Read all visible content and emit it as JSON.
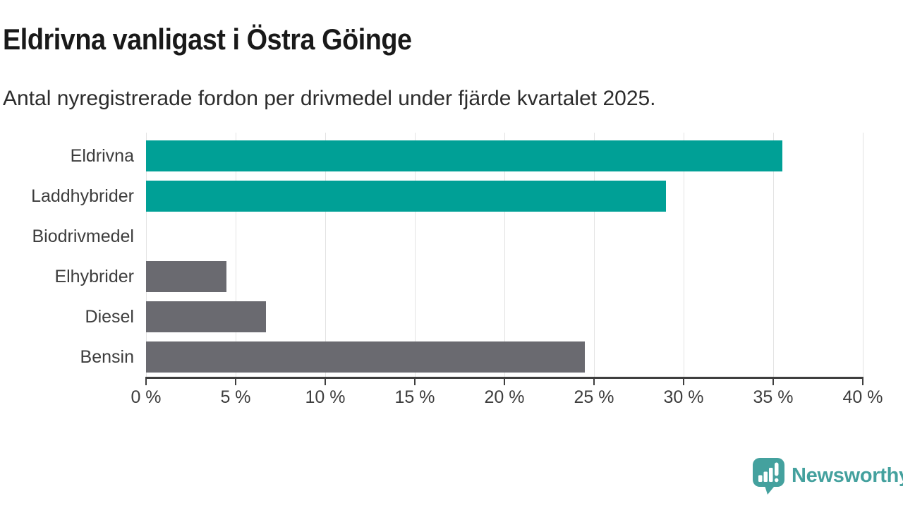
{
  "header": {
    "title": "Eldrivna vanligast i Östra Göinge",
    "subtitle": "Antal nyregistrerade fordon per drivmedel under fjärde kvartalet 2025."
  },
  "chart_data": {
    "type": "bar",
    "orientation": "horizontal",
    "title": "Eldrivna vanligast i Östra Göinge",
    "subtitle": "Antal nyregistrerade fordon per drivmedel under fjärde kvartalet 2025.",
    "categories": [
      "Eldrivna",
      "Laddhybrider",
      "Biodrivmedel",
      "Elhybrider",
      "Diesel",
      "Bensin"
    ],
    "values": [
      35.5,
      29,
      0,
      4.5,
      6.7,
      24.5
    ],
    "unit": "%",
    "bar_colors": [
      "#00A096",
      "#00A096",
      "#00A096",
      "#6A6A70",
      "#6A6A70",
      "#6A6A70"
    ],
    "highlight_color": "#00A096",
    "default_color": "#6A6A70",
    "xlabel": "",
    "ylabel": "",
    "xlim": [
      0,
      40
    ],
    "x_ticks": [
      0,
      5,
      10,
      15,
      20,
      25,
      30,
      35,
      40
    ],
    "x_tick_labels": [
      "0 %",
      "5 %",
      "10 %",
      "15 %",
      "20 %",
      "25 %",
      "30 %",
      "35 %",
      "40 %"
    ],
    "grid": "vertical-only",
    "legend": "none",
    "gridline_color": "#e3e3e3",
    "axis_color": "#3e3e3e",
    "label_color": "#3d3d3d"
  },
  "footer": {
    "brand": "Newsworthy",
    "brand_color": "#44A19E",
    "logo_icon": "speech-bubble-bar-chart-exclamation"
  }
}
